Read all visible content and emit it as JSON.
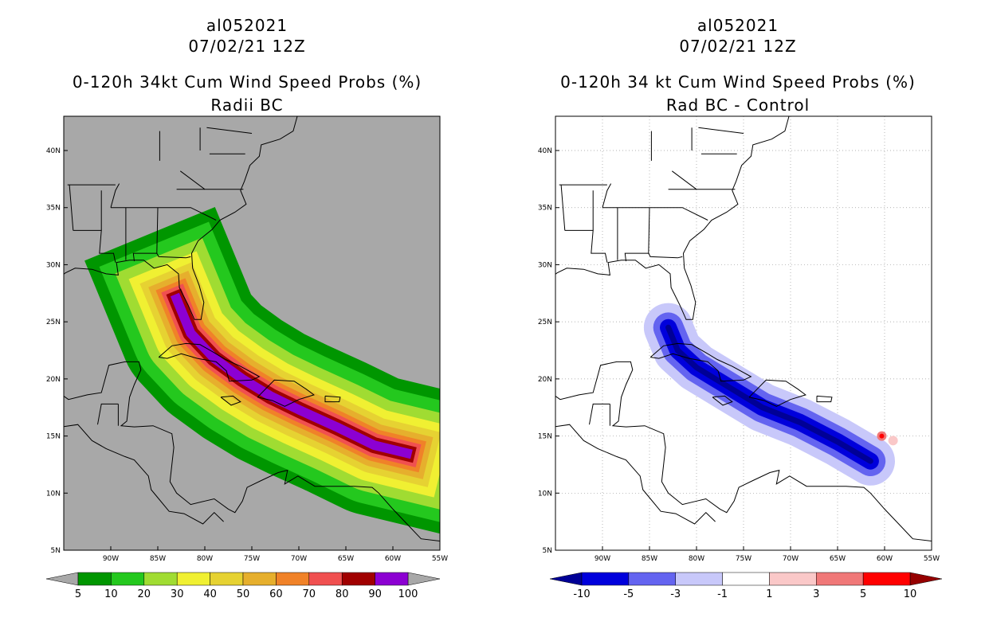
{
  "chart_data": [
    {
      "type": "contour-map",
      "storm_id": "al052021",
      "datetime": "07/02/21 12Z",
      "title": "0-120h 34kt Cum Wind Speed Probs (%)",
      "subtitle": "Radii BC",
      "background": "#a8a8a8",
      "lon_range": [
        -95,
        -55
      ],
      "lat_range": [
        5,
        43
      ],
      "x_ticks": [
        {
          "lon": -90,
          "label": "90W"
        },
        {
          "lon": -85,
          "label": "85W"
        },
        {
          "lon": -80,
          "label": "80W"
        },
        {
          "lon": -75,
          "label": "75W"
        },
        {
          "lon": -70,
          "label": "70W"
        },
        {
          "lon": -65,
          "label": "65W"
        },
        {
          "lon": -60,
          "label": "60W"
        },
        {
          "lon": -55,
          "label": "55W"
        }
      ],
      "y_ticks": [
        {
          "lat": 5,
          "label": "5N"
        },
        {
          "lat": 10,
          "label": "10N"
        },
        {
          "lat": 15,
          "label": "15N"
        },
        {
          "lat": 20,
          "label": "20N"
        },
        {
          "lat": 25,
          "label": "25N"
        },
        {
          "lat": 30,
          "label": "30N"
        },
        {
          "lat": 35,
          "label": "35N"
        },
        {
          "lat": 40,
          "label": "40N"
        }
      ],
      "colorbar": {
        "labels": [
          "5",
          "10",
          "20",
          "30",
          "40",
          "50",
          "60",
          "70",
          "80",
          "90",
          "100"
        ],
        "colors": [
          "#009600",
          "#24c81e",
          "#a0dc32",
          "#f0f032",
          "#e6d232",
          "#e6af2d",
          "#f08228",
          "#f05050",
          "#a00000",
          "#8c00d2"
        ],
        "under": "#a8a8a8",
        "over": "#a8a8a8"
      },
      "track": [
        [
          -58.5,
          13.5
        ],
        [
          -62,
          14.2
        ],
        [
          -66,
          15.8
        ],
        [
          -70,
          17.3
        ],
        [
          -73,
          18.5
        ],
        [
          -76,
          20
        ],
        [
          -79,
          21.8
        ],
        [
          -81.5,
          24
        ],
        [
          -83,
          27
        ]
      ],
      "band_half_widths": [
        7.5,
        6.3,
        5.0,
        3.9,
        3.0,
        2.3,
        1.7,
        1.25,
        0.85,
        0.5
      ]
    },
    {
      "type": "contour-map",
      "storm_id": "al052021",
      "datetime": "07/02/21 12Z",
      "title": "0-120h 34 kt Cum Wind Speed Probs (%)",
      "subtitle": "Rad BC - Control",
      "background": "#ffffff",
      "lon_range": [
        -95,
        -55
      ],
      "lat_range": [
        5,
        43
      ],
      "x_ticks": [
        {
          "lon": -90,
          "label": "90W"
        },
        {
          "lon": -85,
          "label": "85W"
        },
        {
          "lon": -80,
          "label": "80W"
        },
        {
          "lon": -75,
          "label": "75W"
        },
        {
          "lon": -70,
          "label": "70W"
        },
        {
          "lon": -65,
          "label": "65W"
        },
        {
          "lon": -60,
          "label": "60W"
        },
        {
          "lon": -55,
          "label": "55W"
        }
      ],
      "y_ticks": [
        {
          "lat": 5,
          "label": "5N"
        },
        {
          "lat": 10,
          "label": "10N"
        },
        {
          "lat": 15,
          "label": "15N"
        },
        {
          "lat": 20,
          "label": "20N"
        },
        {
          "lat": 25,
          "label": "25N"
        },
        {
          "lat": 30,
          "label": "30N"
        },
        {
          "lat": 35,
          "label": "35N"
        },
        {
          "lat": 40,
          "label": "40N"
        }
      ],
      "grid": true,
      "colorbar": {
        "labels": [
          "-10",
          "-5",
          "-3",
          "-1",
          "1",
          "3",
          "5",
          "10"
        ],
        "colors": [
          "#0000dc",
          "#6464f0",
          "#c8c8fa",
          "#ffffff",
          "#fac8c8",
          "#f07878",
          "#ff0000"
        ],
        "under": "#000096",
        "over": "#960000"
      },
      "track": [
        [
          -61.5,
          12.8
        ],
        [
          -65,
          14.5
        ],
        [
          -69,
          16.2
        ],
        [
          -73,
          17.5
        ],
        [
          -77,
          19.5
        ],
        [
          -80,
          21
        ],
        [
          -82,
          22.5
        ],
        [
          -83,
          24.5
        ]
      ],
      "neg_bands": [
        {
          "color": "#c8c8fa",
          "half_width": 2.6
        },
        {
          "color": "#6464f0",
          "half_width": 1.6
        },
        {
          "color": "#0000dc",
          "half_width": 0.9
        },
        {
          "color": "#000096",
          "half_width": 0.3
        }
      ],
      "pos_spots": [
        {
          "lon": -60.3,
          "lat": 15.0,
          "color": "#f07878"
        },
        {
          "lon": -60.3,
          "lat": 15.0,
          "color": "#ff0000"
        },
        {
          "lon": -59.1,
          "lat": 14.6,
          "color": "#fac8c8"
        }
      ]
    }
  ]
}
